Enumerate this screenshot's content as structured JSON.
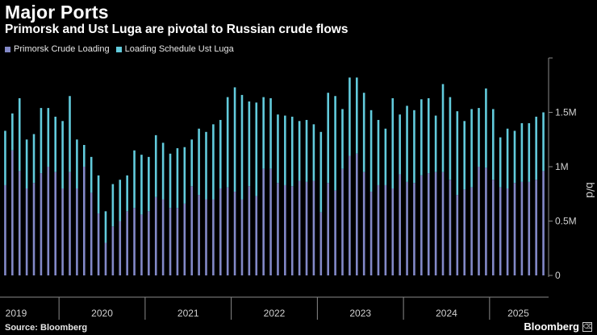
{
  "header": {
    "title": "Major Ports",
    "subtitle": "Primorsk and Ust Luga are pivotal to Russian crude flows"
  },
  "colors": {
    "background": "#000000",
    "primorsk": "#8389c8",
    "ustluga": "#62cbdc",
    "axis": "#8a8a8a"
  },
  "chart_data": {
    "type": "bar",
    "stacked": true,
    "title": "Major Ports",
    "subtitle": "Primorsk and Ust Luga are pivotal to Russian crude flows",
    "ylabel": "b/d",
    "ylim": [
      0,
      2000000
    ],
    "yticks": [
      0,
      500000,
      1000000,
      1500000
    ],
    "ytick_labels": [
      "0",
      "0.5M",
      "1M",
      "1.5M"
    ],
    "year_labels": [
      "2019",
      "2020",
      "2021",
      "2022",
      "2023",
      "2024",
      "2025"
    ],
    "year_start_index": [
      0,
      8,
      20,
      32,
      44,
      56,
      68
    ],
    "series": [
      {
        "name": "Primorsk Crude Loading",
        "values": [
          830000,
          1150000,
          960000,
          800000,
          850000,
          940000,
          1000000,
          950000,
          800000,
          950000,
          800000,
          1000000,
          760000,
          570000,
          300000,
          450000,
          500000,
          590000,
          620000,
          560000,
          590000,
          720000,
          700000,
          620000,
          620000,
          660000,
          820000,
          740000,
          700000,
          700000,
          800000,
          810000,
          770000,
          700000,
          820000,
          730000,
          980000,
          980000,
          850000,
          830000,
          820000,
          870000,
          860000,
          870000,
          580000,
          850000,
          780000,
          980000,
          1100000,
          1120000,
          950000,
          770000,
          830000,
          830000,
          800000,
          930000,
          860000,
          850000,
          920000,
          940000,
          950000,
          950000,
          880000,
          740000,
          790000,
          810000,
          1000000,
          990000,
          880000,
          810000,
          800000,
          850000,
          860000,
          860000,
          880000,
          960000
        ]
      },
      {
        "name": "Loading Schedule Ust Luga",
        "values": [
          500000,
          340000,
          670000,
          450000,
          450000,
          600000,
          540000,
          510000,
          620000,
          700000,
          450000,
          200000,
          330000,
          350000,
          290000,
          390000,
          380000,
          330000,
          530000,
          550000,
          500000,
          570000,
          520000,
          500000,
          550000,
          520000,
          430000,
          610000,
          620000,
          690000,
          630000,
          830000,
          960000,
          960000,
          780000,
          860000,
          660000,
          650000,
          630000,
          640000,
          640000,
          550000,
          570000,
          520000,
          740000,
          830000,
          870000,
          550000,
          720000,
          700000,
          730000,
          750000,
          600000,
          520000,
          830000,
          550000,
          700000,
          670000,
          700000,
          690000,
          520000,
          810000,
          760000,
          770000,
          630000,
          720000,
          540000,
          730000,
          650000,
          460000,
          550000,
          480000,
          540000,
          540000,
          580000,
          540000
        ]
      }
    ],
    "legend_placement": "top-left",
    "grid": false
  },
  "footer": {
    "source": "Source: Bloomberg",
    "brand": "Bloomberg"
  }
}
